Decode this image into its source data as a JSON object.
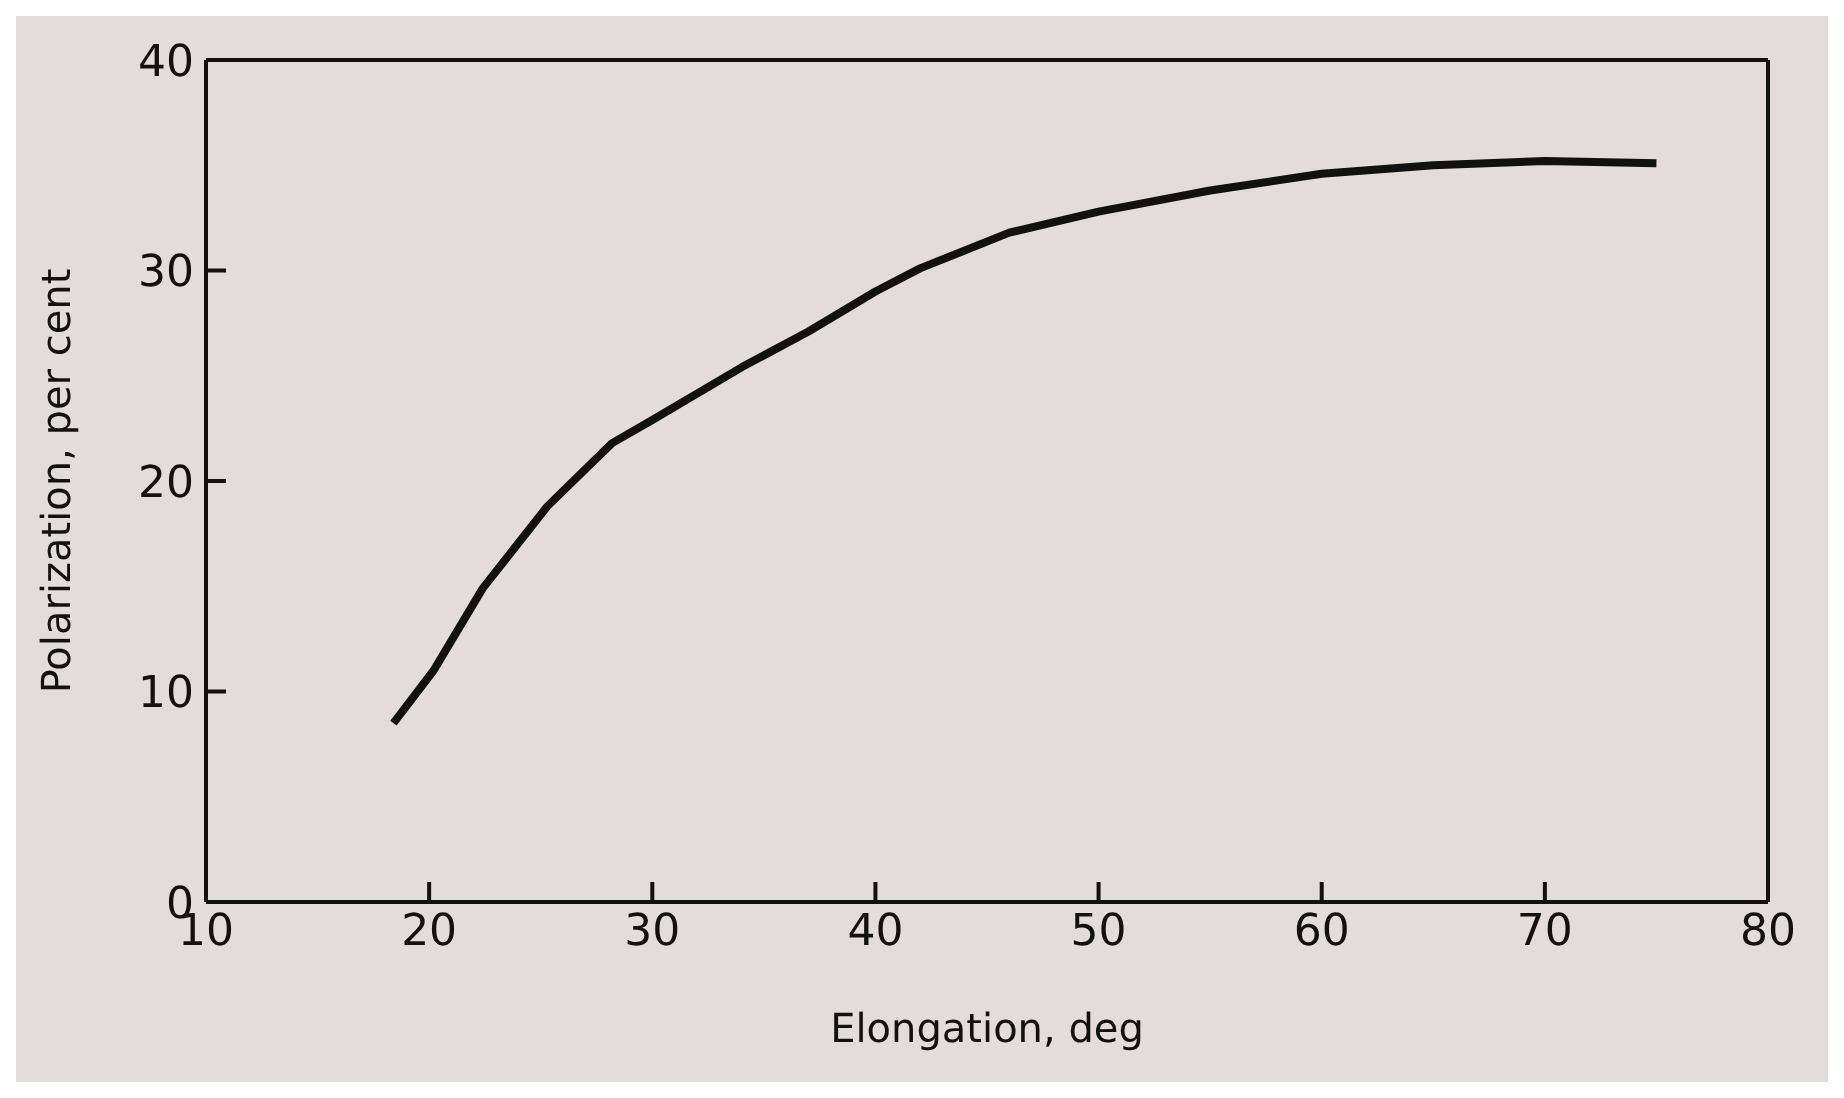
{
  "chart_data": {
    "type": "line",
    "xlabel": "Elongation, deg",
    "ylabel": "Polarization, per cent",
    "x": [
      18.4,
      20.2,
      22.4,
      25.3,
      28.2,
      30,
      34,
      37,
      40,
      42,
      46,
      50,
      55,
      60,
      65,
      70,
      75
    ],
    "series": [
      {
        "color": "#111111",
        "values": [
          8.5,
          11.0,
          14.9,
          18.8,
          21.8,
          22.9,
          25.4,
          27.1,
          29.0,
          30.1,
          31.8,
          32.8,
          33.8,
          34.6,
          35.0,
          35.2,
          35.1
        ]
      }
    ],
    "xlim": [
      10,
      80
    ],
    "xticks": [
      10,
      20,
      30,
      40,
      50,
      60,
      70,
      80
    ],
    "ylim": [
      0,
      40
    ],
    "yticks": [
      0,
      10,
      20,
      30,
      40
    ],
    "grid": false,
    "legend": false,
    "marker": "none",
    "line_style": "solid"
  }
}
